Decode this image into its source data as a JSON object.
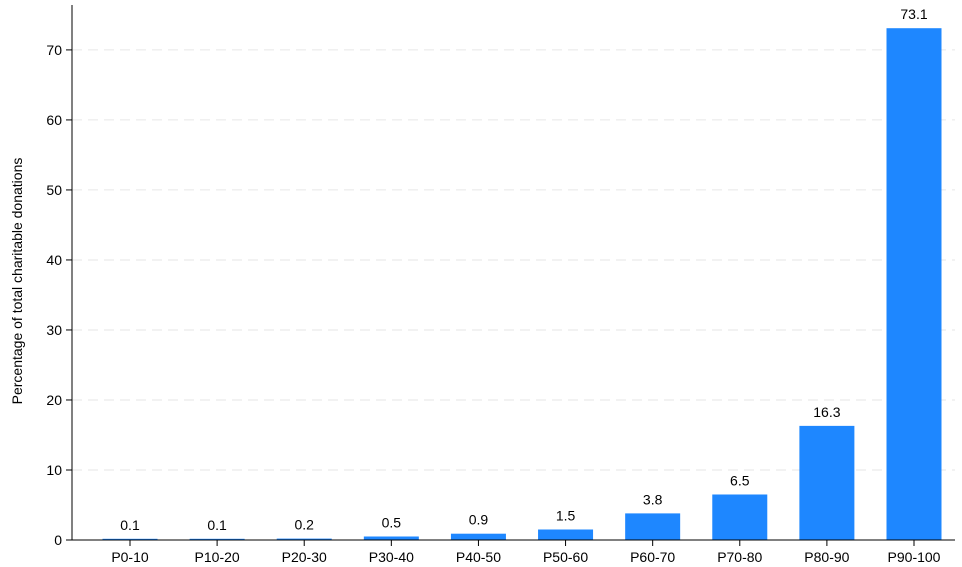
{
  "chart_data": {
    "type": "bar",
    "title": "",
    "xlabel": "",
    "ylabel": "Percentage of total charitable donations",
    "categories": [
      "P0-10",
      "P10-20",
      "P20-30",
      "P30-40",
      "P40-50",
      "P50-60",
      "P60-70",
      "P70-80",
      "P80-90",
      "P90-100"
    ],
    "values": [
      0.1,
      0.1,
      0.2,
      0.5,
      0.9,
      1.5,
      3.8,
      6.5,
      16.3,
      73.1
    ],
    "value_labels": [
      "0.1",
      "0.1",
      "0.2",
      "0.5",
      "0.9",
      "1.5",
      "3.8",
      "6.5",
      "16.3",
      "73.1"
    ],
    "yticks": [
      0,
      10,
      20,
      30,
      40,
      50,
      60,
      70
    ],
    "ylim": [
      0,
      75.7
    ],
    "grid": "horizontal dashed",
    "legend": "none",
    "bar_color": "#1e87ff",
    "grid_color": "#e6e6e6"
  }
}
